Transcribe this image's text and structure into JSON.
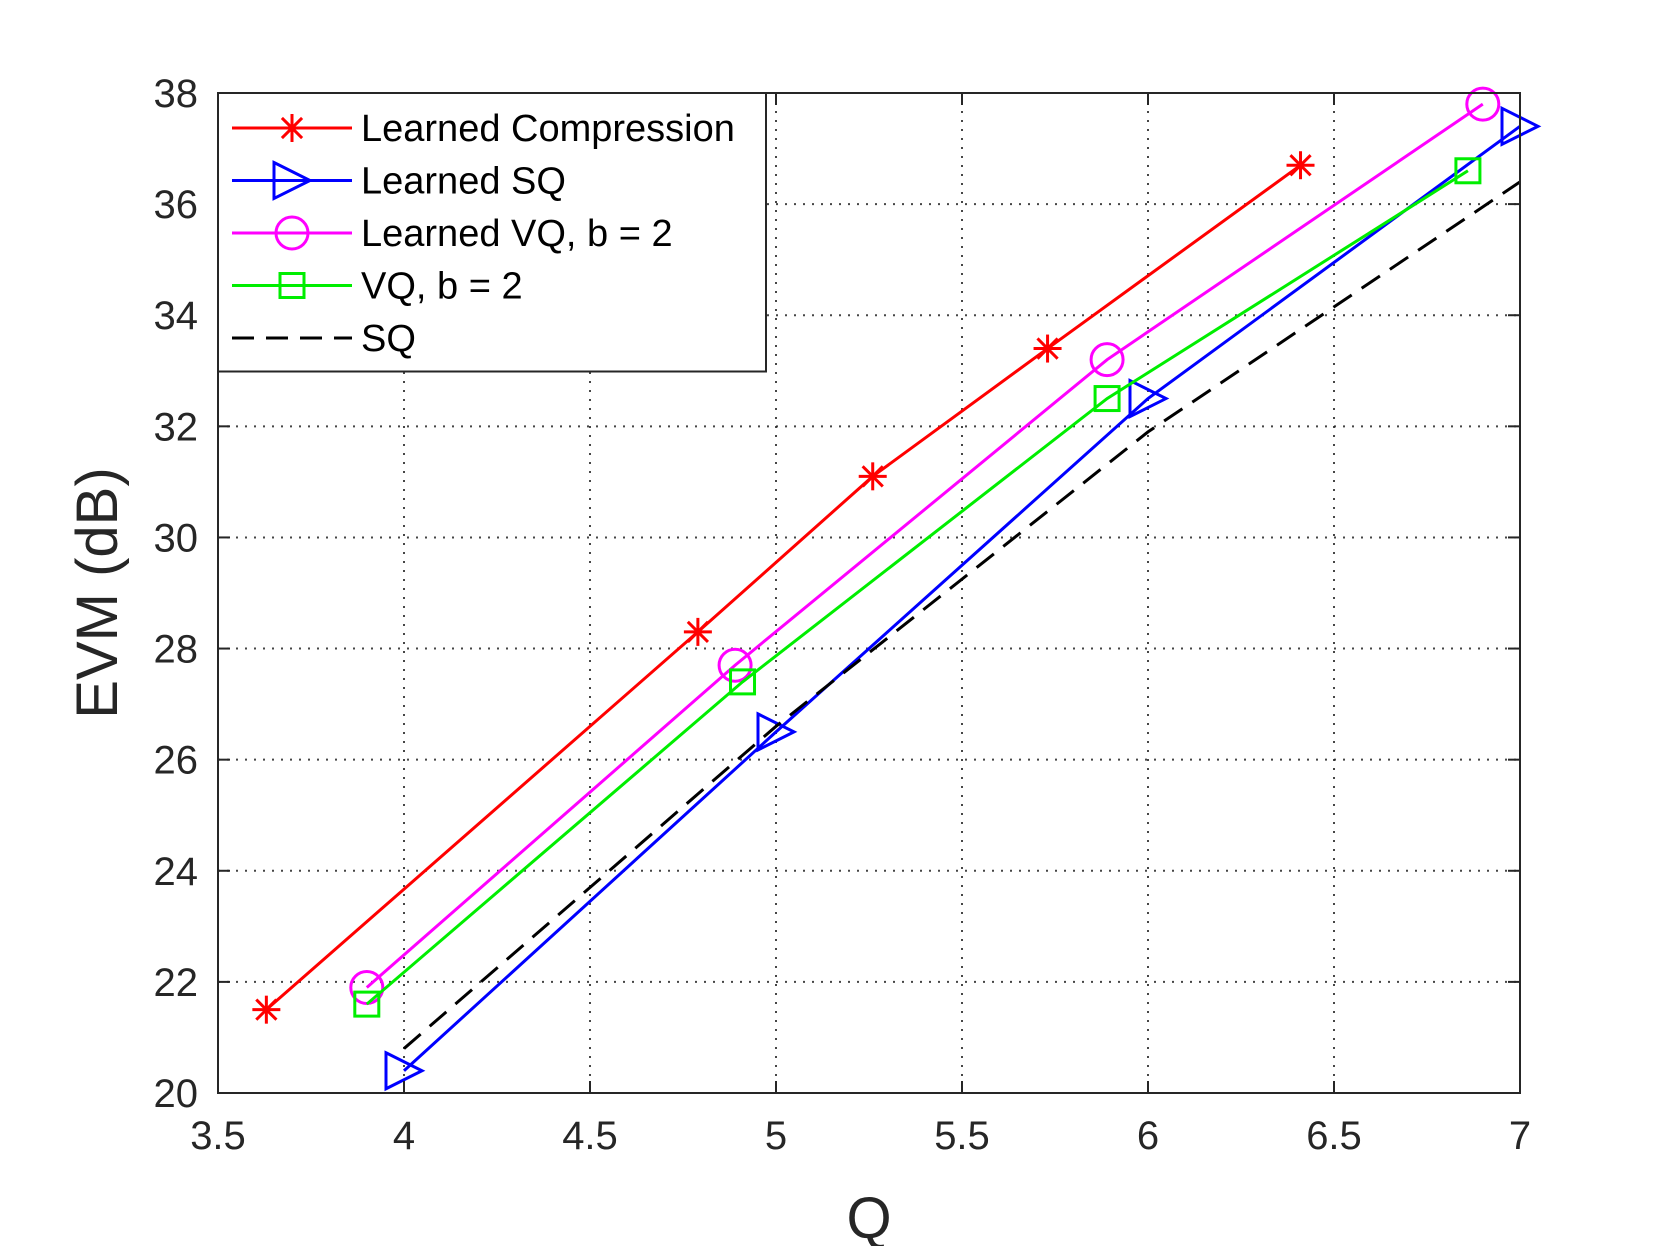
{
  "chart_data": {
    "type": "line",
    "xlabel": "Q",
    "ylabel": "EVM (dB)",
    "xlim": [
      3.5,
      7
    ],
    "ylim": [
      20,
      38
    ],
    "xticks": [
      "3.5",
      "4",
      "4.5",
      "5",
      "5.5",
      "6",
      "6.5",
      "7"
    ],
    "yticks": [
      "20",
      "22",
      "24",
      "26",
      "28",
      "30",
      "32",
      "34",
      "36",
      "38"
    ],
    "grid": true,
    "legend_position": "top-left",
    "series": [
      {
        "name": "Learned Compression",
        "color": "#ff0000",
        "marker": "asterisk",
        "dash": "solid",
        "x": [
          3.63,
          4.79,
          5.26,
          5.73,
          6.41
        ],
        "y": [
          21.5,
          28.3,
          31.1,
          33.4,
          36.7
        ]
      },
      {
        "name": "Learned SQ",
        "color": "#0000ff",
        "marker": "triangle-right",
        "dash": "solid",
        "x": [
          4.0,
          5.0,
          6.0,
          7.0
        ],
        "y": [
          20.4,
          26.5,
          32.5,
          37.4
        ]
      },
      {
        "name": "Learned VQ, b = 2",
        "color": "#ff00ff",
        "marker": "circle",
        "dash": "solid",
        "x": [
          3.9,
          4.89,
          5.89,
          6.9
        ],
        "y": [
          21.9,
          27.7,
          33.2,
          37.8
        ]
      },
      {
        "name": "VQ, b = 2",
        "color": "#00ee00",
        "marker": "square",
        "dash": "solid",
        "x": [
          3.9,
          4.91,
          5.89,
          6.86
        ],
        "y": [
          21.6,
          27.4,
          32.5,
          36.6
        ]
      },
      {
        "name": "SQ",
        "color": "#000000",
        "marker": "none",
        "dash": "dashed",
        "x": [
          4.0,
          5.0,
          6.0,
          7.0
        ],
        "y": [
          20.8,
          26.6,
          31.9,
          36.4
        ]
      }
    ]
  }
}
